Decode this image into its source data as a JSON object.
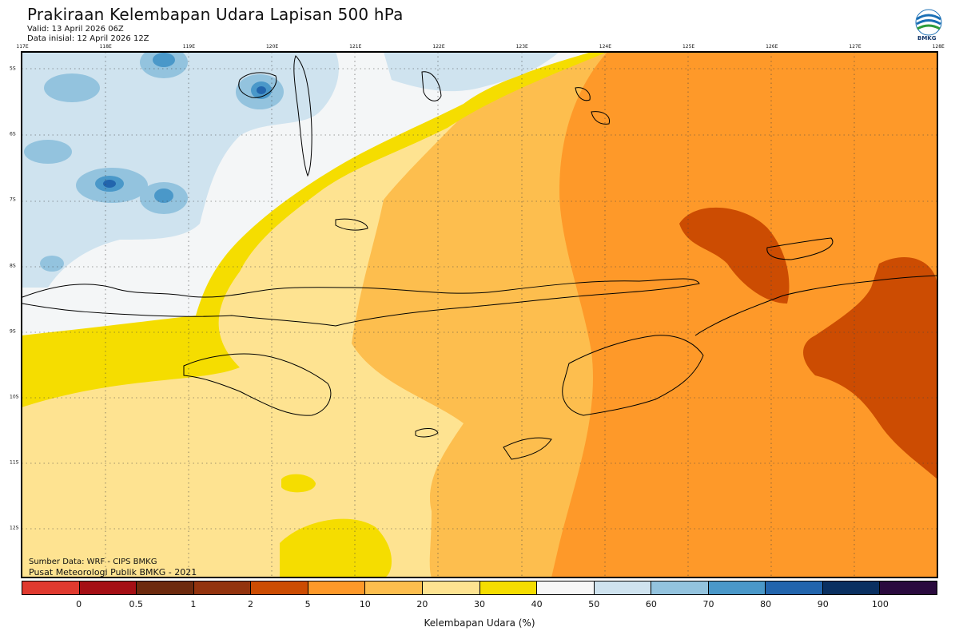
{
  "header": {
    "title": "Prakiraan Kelembapan Udara Lapisan 500 hPa",
    "valid": "Valid: 13 April 2026 06Z",
    "init": "Data inisial: 12 April 2026 12Z",
    "logo_text": "BMKG"
  },
  "axes": {
    "lon_labels": [
      "117E",
      "118E",
      "119E",
      "120E",
      "121E",
      "122E",
      "123E",
      "124E",
      "125E",
      "126E",
      "127E",
      "128E"
    ],
    "lat_labels": [
      "5S",
      "6S",
      "7S",
      "8S",
      "9S",
      "10S",
      "11S",
      "12S"
    ]
  },
  "footer": {
    "source": "Sumber Data: WRF - CIPS BMKG",
    "office": "Pusat Meteorologi Publik BMKG - 2021"
  },
  "colorbar": {
    "title": "Kelembapan Udara (%)",
    "colors": [
      "#e03a2f",
      "#a50f15",
      "#6d2a0e",
      "#93330e",
      "#cc4c02",
      "#fe9929",
      "#fdbe4e",
      "#fee391",
      "#f5dd00",
      "#f7f7f7",
      "#cfe3ef",
      "#93c3de",
      "#4a98c9",
      "#2265ad",
      "#0a3061",
      "#2a0a3e"
    ],
    "labels": [
      "0",
      "0.5",
      "1",
      "2",
      "5",
      "10",
      "20",
      "30",
      "40",
      "50",
      "60",
      "70",
      "80",
      "90",
      "100"
    ]
  },
  "legend_colors": {
    "water": "#cfe3ef",
    "ocean_light": "#f4f6f7",
    "yellow": "#f5dd00",
    "cream": "#fee391",
    "light_orange": "#fdbe4e",
    "orange": "#fe9929",
    "dark_orange": "#cc4c02",
    "blue_mid": "#93c3de",
    "blue_dark": "#2265ad"
  }
}
